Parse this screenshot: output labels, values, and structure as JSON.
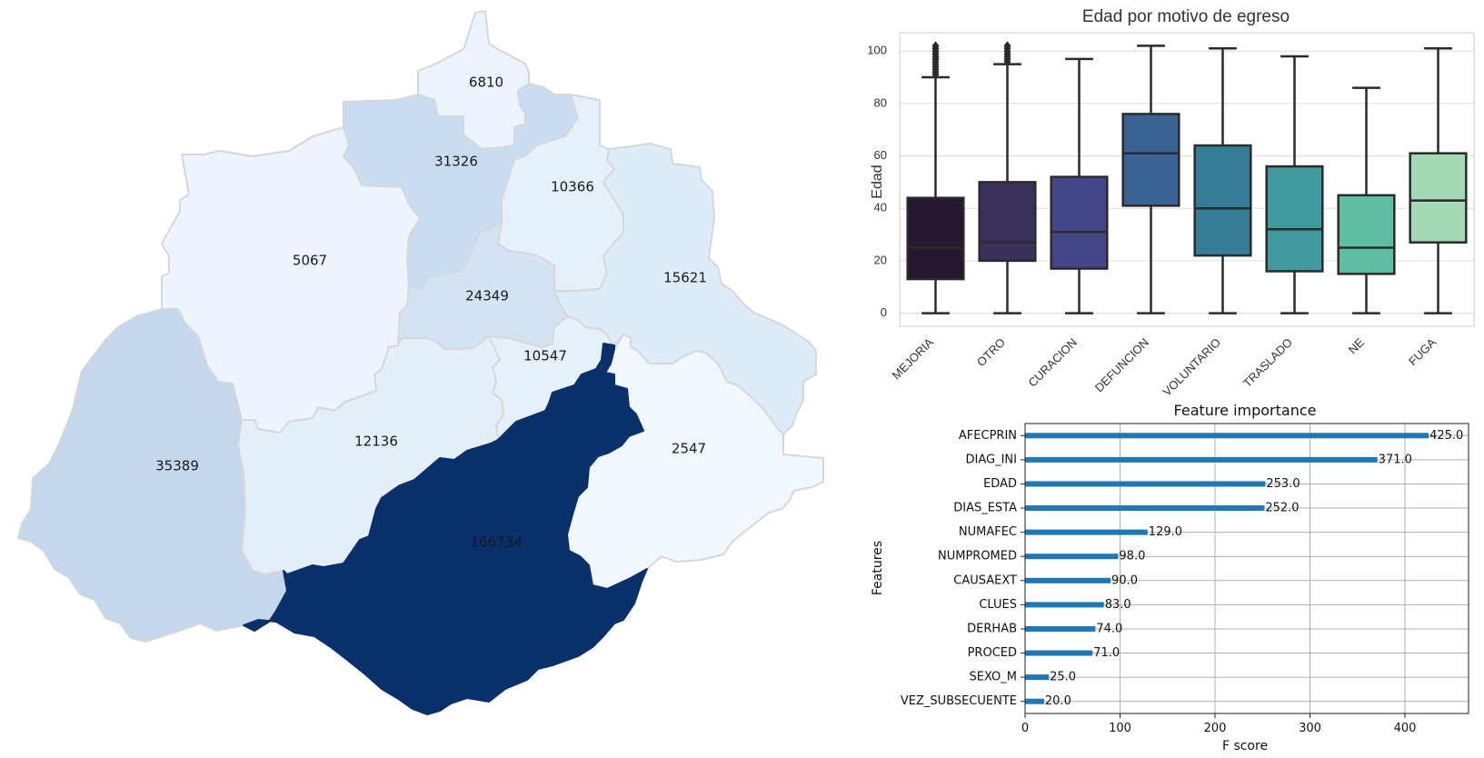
{
  "chart_data": [
    {
      "type": "choropleth",
      "colormap": "Blues",
      "regions": [
        {
          "value": 6810
        },
        {
          "value": 31326
        },
        {
          "value": 10366
        },
        {
          "value": 5067
        },
        {
          "value": 24349
        },
        {
          "value": 15621
        },
        {
          "value": 10547
        },
        {
          "value": 35389
        },
        {
          "value": 12136
        },
        {
          "value": 2547
        },
        {
          "value": 166734
        }
      ]
    },
    {
      "type": "box",
      "title": "Edad por motivo de egreso",
      "ylabel": "Edad",
      "xlabel": "",
      "ylim": [
        -5,
        107
      ],
      "yticks": [
        0,
        20,
        40,
        60,
        80,
        100
      ],
      "grid": true,
      "categories": [
        "MEJORIA",
        "OTRO",
        "CURACION",
        "DEFUNCION",
        "VOLUNTARIO",
        "TRASLADO",
        "NE",
        "FUGA"
      ],
      "boxes": [
        {
          "min": 0,
          "q1": 13,
          "median": 25,
          "q3": 44,
          "max": 90,
          "outliers": [
            91,
            92,
            93,
            94,
            95,
            96,
            97,
            98,
            99,
            100,
            101,
            102
          ]
        },
        {
          "min": 0,
          "q1": 20,
          "median": 27,
          "q3": 50,
          "max": 95,
          "outliers": [
            96,
            97,
            98,
            99,
            100,
            101,
            102
          ]
        },
        {
          "min": 0,
          "q1": 17,
          "median": 31,
          "q3": 52,
          "max": 97,
          "outliers": []
        },
        {
          "min": 0,
          "q1": 41,
          "median": 61,
          "q3": 76,
          "max": 102,
          "outliers": []
        },
        {
          "min": 0,
          "q1": 22,
          "median": 40,
          "q3": 64,
          "max": 101,
          "outliers": []
        },
        {
          "min": 0,
          "q1": 16,
          "median": 32,
          "q3": 56,
          "max": 98,
          "outliers": []
        },
        {
          "min": 0,
          "q1": 15,
          "median": 25,
          "q3": 45,
          "max": 86,
          "outliers": []
        },
        {
          "min": 0,
          "q1": 27,
          "median": 43,
          "q3": 61,
          "max": 101,
          "outliers": []
        }
      ],
      "colors": [
        "#24192f",
        "#3b2f5e",
        "#43478a",
        "#3a6293",
        "#347d96",
        "#3e9a9c",
        "#5fbda3",
        "#a3d9b7"
      ]
    },
    {
      "type": "bar",
      "orientation": "horizontal",
      "title": "Feature importance",
      "xlabel": "F score",
      "ylabel": "Features",
      "xlim": [
        0,
        467
      ],
      "xticks": [
        0,
        100,
        200,
        300,
        400
      ],
      "grid": true,
      "color": "#1f77b4",
      "categories": [
        "AFECPRIN",
        "DIAG_INI",
        "EDAD",
        "DIAS_ESTA",
        "NUMAFEC",
        "NUMPROMED",
        "CAUSAEXT",
        "CLUES",
        "DERHAB",
        "PROCED",
        "SEXO_M",
        "VEZ_SUBSECUENTE"
      ],
      "values": [
        425.0,
        371.0,
        253.0,
        252.0,
        129.0,
        98.0,
        90.0,
        83.0,
        74.0,
        71.0,
        25.0,
        20.0
      ],
      "value_labels": [
        "425.0",
        "371.0",
        "253.0",
        "252.0",
        "129.0",
        "98.0",
        "90.0",
        "83.0",
        "74.0",
        "71.0",
        "25.0",
        "20.0"
      ]
    }
  ]
}
